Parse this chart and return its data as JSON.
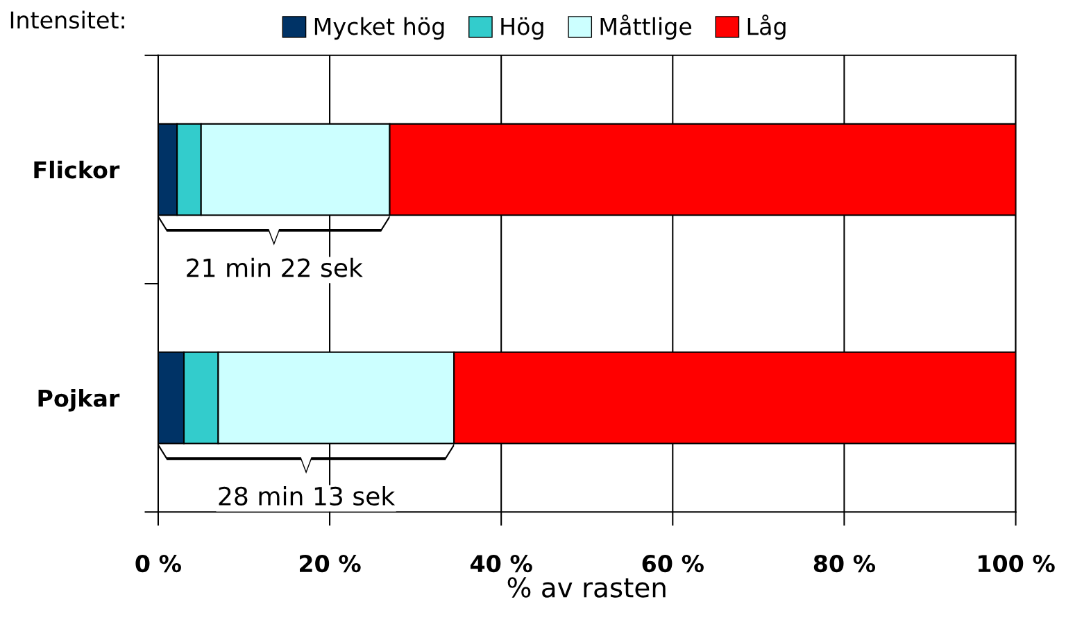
{
  "chart_data": {
    "type": "bar",
    "orientation": "horizontal",
    "stacked": true,
    "legend_title": "Intensitet:",
    "legend": "top",
    "xlabel": "% av rasten",
    "categories": [
      "Flickor",
      "Pojkar"
    ],
    "series": [
      {
        "name": "Mycket hög",
        "color": "#003366",
        "values": [
          2.2,
          3.0
        ]
      },
      {
        "name": "Hög",
        "color": "#33cccc",
        "values": [
          2.8,
          4.0
        ]
      },
      {
        "name": "Måttlige",
        "color": "#ccffff",
        "values": [
          22.0,
          27.5
        ]
      },
      {
        "name": "Låg",
        "color": "#ff0000",
        "values": [
          73.0,
          65.5
        ]
      }
    ],
    "xlim": [
      0,
      100
    ],
    "xticks": [
      {
        "value": 0,
        "label": "0 %"
      },
      {
        "value": 20,
        "label": "20 %"
      },
      {
        "value": 40,
        "label": "40 %"
      },
      {
        "value": 60,
        "label": "60 %"
      },
      {
        "value": 80,
        "label": "80 %"
      },
      {
        "value": 100,
        "label": "100 %"
      }
    ],
    "grid": "x",
    "annotations": [
      "21 min 22 sek",
      "28 min 13 sek"
    ]
  }
}
